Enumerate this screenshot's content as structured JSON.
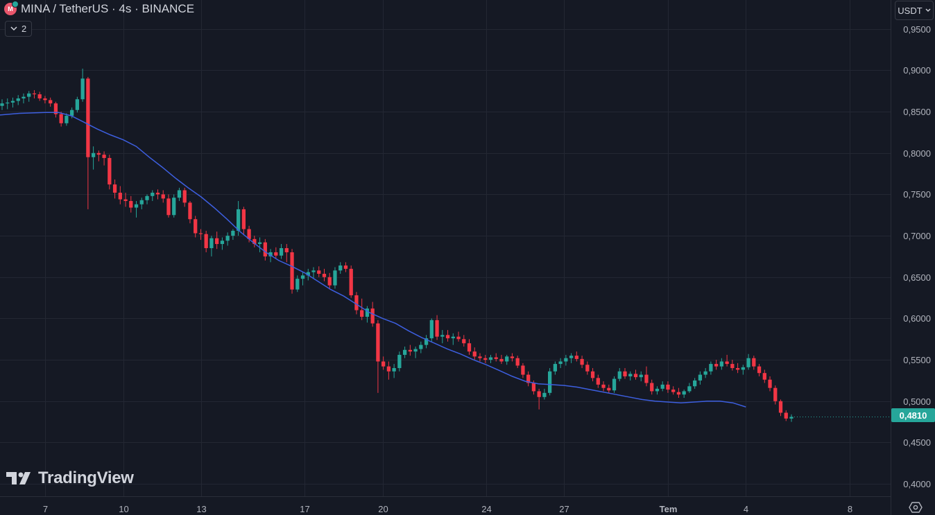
{
  "legend": {
    "symbol_title": "MINA / TetherUS · 4s · BINANCE",
    "coin_icon_letter": "M",
    "indicator_count": "2"
  },
  "currency_button": {
    "label": "USDT"
  },
  "brand": {
    "name": "TradingView"
  },
  "last_price": {
    "label": "0,4810",
    "value": 0.481,
    "color": "#26a69a"
  },
  "colors": {
    "background": "#151924",
    "up": "#26a69a",
    "down": "#f23645",
    "ma": "#3d5fe0",
    "grid": "#232733"
  },
  "chart_data": {
    "type": "candlestick",
    "title": "MINA / TetherUS · 4s · BINANCE",
    "interval": "4s",
    "y_axis": {
      "range": [
        0.385,
        0.985
      ],
      "ticks": [
        0.95,
        0.9,
        0.85,
        0.8,
        0.75,
        0.7,
        0.65,
        0.6,
        0.55,
        0.5,
        0.45,
        0.4
      ],
      "tick_labels": [
        "0,9500",
        "0,9000",
        "0,8500",
        "0,8000",
        "0,7500",
        "0,7000",
        "0,6500",
        "0,6000",
        "0,5500",
        "0,5000",
        "0,4500",
        "0,4000"
      ]
    },
    "x_axis": {
      "start_day": 5.25,
      "end_day": 39.58,
      "ticks": [
        {
          "day": 7,
          "label": "7"
        },
        {
          "day": 10,
          "label": "10"
        },
        {
          "day": 13,
          "label": "13"
        },
        {
          "day": 17,
          "label": "17"
        },
        {
          "day": 20,
          "label": "20"
        },
        {
          "day": 24,
          "label": "24"
        },
        {
          "day": 27,
          "label": "27"
        },
        {
          "day": 31,
          "label": "Tem"
        },
        {
          "day": 34,
          "label": "4"
        },
        {
          "day": 38,
          "label": "8"
        }
      ]
    },
    "grid": true,
    "candles_ohlc": [
      [
        0.857,
        0.865,
        0.852,
        0.86
      ],
      [
        0.86,
        0.866,
        0.853,
        0.861
      ],
      [
        0.861,
        0.867,
        0.855,
        0.863
      ],
      [
        0.863,
        0.87,
        0.858,
        0.866
      ],
      [
        0.866,
        0.872,
        0.86,
        0.868
      ],
      [
        0.868,
        0.875,
        0.862,
        0.872
      ],
      [
        0.872,
        0.876,
        0.866,
        0.871
      ],
      [
        0.871,
        0.874,
        0.863,
        0.866
      ],
      [
        0.866,
        0.869,
        0.86,
        0.864
      ],
      [
        0.864,
        0.867,
        0.856,
        0.86
      ],
      [
        0.86,
        0.862,
        0.843,
        0.847
      ],
      [
        0.847,
        0.85,
        0.832,
        0.836
      ],
      [
        0.836,
        0.848,
        0.833,
        0.845
      ],
      [
        0.845,
        0.855,
        0.842,
        0.852
      ],
      [
        0.852,
        0.868,
        0.849,
        0.865
      ],
      [
        0.865,
        0.902,
        0.862,
        0.89
      ],
      [
        0.89,
        0.892,
        0.732,
        0.795
      ],
      [
        0.795,
        0.808,
        0.78,
        0.8
      ],
      [
        0.8,
        0.803,
        0.79,
        0.798
      ],
      [
        0.798,
        0.802,
        0.785,
        0.794
      ],
      [
        0.794,
        0.798,
        0.756,
        0.762
      ],
      [
        0.762,
        0.768,
        0.745,
        0.752
      ],
      [
        0.752,
        0.76,
        0.738,
        0.744
      ],
      [
        0.744,
        0.752,
        0.735,
        0.742
      ],
      [
        0.742,
        0.748,
        0.728,
        0.734
      ],
      [
        0.734,
        0.742,
        0.722,
        0.738
      ],
      [
        0.738,
        0.746,
        0.732,
        0.743
      ],
      [
        0.743,
        0.75,
        0.738,
        0.748
      ],
      [
        0.748,
        0.755,
        0.742,
        0.752
      ],
      [
        0.752,
        0.756,
        0.744,
        0.75
      ],
      [
        0.75,
        0.755,
        0.74,
        0.745
      ],
      [
        0.745,
        0.75,
        0.722,
        0.725
      ],
      [
        0.725,
        0.75,
        0.722,
        0.746
      ],
      [
        0.746,
        0.758,
        0.742,
        0.755
      ],
      [
        0.755,
        0.758,
        0.735,
        0.74
      ],
      [
        0.74,
        0.742,
        0.715,
        0.72
      ],
      [
        0.72,
        0.724,
        0.698,
        0.703
      ],
      [
        0.703,
        0.708,
        0.695,
        0.702
      ],
      [
        0.702,
        0.706,
        0.68,
        0.685
      ],
      [
        0.685,
        0.7,
        0.675,
        0.697
      ],
      [
        0.697,
        0.705,
        0.684,
        0.69
      ],
      [
        0.69,
        0.698,
        0.683,
        0.694
      ],
      [
        0.694,
        0.704,
        0.688,
        0.7
      ],
      [
        0.7,
        0.708,
        0.695,
        0.706
      ],
      [
        0.706,
        0.742,
        0.7,
        0.732
      ],
      [
        0.732,
        0.735,
        0.702,
        0.708
      ],
      [
        0.708,
        0.712,
        0.692,
        0.696
      ],
      [
        0.696,
        0.7,
        0.686,
        0.69
      ],
      [
        0.69,
        0.698,
        0.68,
        0.692
      ],
      [
        0.692,
        0.696,
        0.67,
        0.675
      ],
      [
        0.675,
        0.684,
        0.668,
        0.68
      ],
      [
        0.68,
        0.686,
        0.672,
        0.676
      ],
      [
        0.676,
        0.69,
        0.672,
        0.685
      ],
      [
        0.685,
        0.69,
        0.668,
        0.68
      ],
      [
        0.68,
        0.684,
        0.63,
        0.635
      ],
      [
        0.635,
        0.652,
        0.632,
        0.648
      ],
      [
        0.648,
        0.656,
        0.64,
        0.652
      ],
      [
        0.652,
        0.66,
        0.646,
        0.656
      ],
      [
        0.656,
        0.662,
        0.648,
        0.658
      ],
      [
        0.658,
        0.663,
        0.65,
        0.654
      ],
      [
        0.654,
        0.66,
        0.645,
        0.65
      ],
      [
        0.65,
        0.655,
        0.635,
        0.64
      ],
      [
        0.64,
        0.662,
        0.636,
        0.658
      ],
      [
        0.658,
        0.668,
        0.654,
        0.664
      ],
      [
        0.664,
        0.668,
        0.656,
        0.66
      ],
      [
        0.66,
        0.664,
        0.625,
        0.628
      ],
      [
        0.628,
        0.632,
        0.605,
        0.61
      ],
      [
        0.61,
        0.624,
        0.598,
        0.602
      ],
      [
        0.602,
        0.615,
        0.595,
        0.612
      ],
      [
        0.612,
        0.62,
        0.59,
        0.594
      ],
      [
        0.594,
        0.598,
        0.51,
        0.548
      ],
      [
        0.548,
        0.554,
        0.538,
        0.542
      ],
      [
        0.542,
        0.548,
        0.526,
        0.536
      ],
      [
        0.536,
        0.545,
        0.528,
        0.54
      ],
      [
        0.54,
        0.56,
        0.536,
        0.556
      ],
      [
        0.556,
        0.566,
        0.552,
        0.562
      ],
      [
        0.562,
        0.568,
        0.555,
        0.56
      ],
      [
        0.56,
        0.566,
        0.552,
        0.563
      ],
      [
        0.563,
        0.572,
        0.558,
        0.568
      ],
      [
        0.568,
        0.58,
        0.564,
        0.576
      ],
      [
        0.576,
        0.6,
        0.572,
        0.598
      ],
      [
        0.598,
        0.604,
        0.574,
        0.578
      ],
      [
        0.578,
        0.586,
        0.57,
        0.58
      ],
      [
        0.58,
        0.586,
        0.572,
        0.576
      ],
      [
        0.576,
        0.582,
        0.568,
        0.578
      ],
      [
        0.578,
        0.584,
        0.572,
        0.575
      ],
      [
        0.575,
        0.58,
        0.566,
        0.57
      ],
      [
        0.57,
        0.575,
        0.556,
        0.56
      ],
      [
        0.56,
        0.565,
        0.55,
        0.554
      ],
      [
        0.554,
        0.558,
        0.548,
        0.552
      ],
      [
        0.552,
        0.556,
        0.546,
        0.55
      ],
      [
        0.55,
        0.556,
        0.546,
        0.553
      ],
      [
        0.553,
        0.558,
        0.548,
        0.551
      ],
      [
        0.551,
        0.556,
        0.545,
        0.548
      ],
      [
        0.548,
        0.556,
        0.544,
        0.554
      ],
      [
        0.554,
        0.558,
        0.548,
        0.552
      ],
      [
        0.552,
        0.555,
        0.54,
        0.543
      ],
      [
        0.543,
        0.546,
        0.528,
        0.532
      ],
      [
        0.532,
        0.536,
        0.518,
        0.522
      ],
      [
        0.522,
        0.525,
        0.508,
        0.512
      ],
      [
        0.512,
        0.515,
        0.49,
        0.505
      ],
      [
        0.505,
        0.515,
        0.502,
        0.51
      ],
      [
        0.51,
        0.54,
        0.507,
        0.536
      ],
      [
        0.536,
        0.548,
        0.532,
        0.545
      ],
      [
        0.545,
        0.552,
        0.54,
        0.548
      ],
      [
        0.548,
        0.556,
        0.543,
        0.552
      ],
      [
        0.552,
        0.558,
        0.546,
        0.555
      ],
      [
        0.555,
        0.56,
        0.548,
        0.551
      ],
      [
        0.551,
        0.555,
        0.54,
        0.544
      ],
      [
        0.544,
        0.548,
        0.532,
        0.536
      ],
      [
        0.536,
        0.54,
        0.524,
        0.528
      ],
      [
        0.528,
        0.532,
        0.516,
        0.52
      ],
      [
        0.52,
        0.524,
        0.512,
        0.516
      ],
      [
        0.516,
        0.52,
        0.51,
        0.513
      ],
      [
        0.513,
        0.53,
        0.51,
        0.527
      ],
      [
        0.527,
        0.54,
        0.524,
        0.536
      ],
      [
        0.536,
        0.54,
        0.527,
        0.53
      ],
      [
        0.53,
        0.536,
        0.525,
        0.533
      ],
      [
        0.533,
        0.538,
        0.526,
        0.529
      ],
      [
        0.529,
        0.536,
        0.524,
        0.532
      ],
      [
        0.532,
        0.542,
        0.518,
        0.522
      ],
      [
        0.522,
        0.526,
        0.508,
        0.512
      ],
      [
        0.512,
        0.518,
        0.508,
        0.515
      ],
      [
        0.515,
        0.524,
        0.512,
        0.52
      ],
      [
        0.52,
        0.524,
        0.51,
        0.514
      ],
      [
        0.514,
        0.518,
        0.508,
        0.511
      ],
      [
        0.511,
        0.516,
        0.504,
        0.508
      ],
      [
        0.508,
        0.514,
        0.504,
        0.512
      ],
      [
        0.512,
        0.522,
        0.51,
        0.518
      ],
      [
        0.518,
        0.528,
        0.515,
        0.525
      ],
      [
        0.525,
        0.536,
        0.52,
        0.532
      ],
      [
        0.532,
        0.54,
        0.528,
        0.536
      ],
      [
        0.536,
        0.548,
        0.532,
        0.545
      ],
      [
        0.545,
        0.55,
        0.538,
        0.542
      ],
      [
        0.542,
        0.552,
        0.538,
        0.548
      ],
      [
        0.548,
        0.556,
        0.542,
        0.545
      ],
      [
        0.545,
        0.55,
        0.537,
        0.54
      ],
      [
        0.54,
        0.546,
        0.534,
        0.538
      ],
      [
        0.538,
        0.544,
        0.532,
        0.541
      ],
      [
        0.541,
        0.557,
        0.538,
        0.552
      ],
      [
        0.552,
        0.555,
        0.538,
        0.542
      ],
      [
        0.542,
        0.545,
        0.53,
        0.534
      ],
      [
        0.534,
        0.538,
        0.522,
        0.526
      ],
      [
        0.526,
        0.53,
        0.512,
        0.516
      ],
      [
        0.516,
        0.519,
        0.496,
        0.5
      ],
      [
        0.5,
        0.502,
        0.482,
        0.486
      ],
      [
        0.486,
        0.489,
        0.476,
        0.479
      ],
      [
        0.479,
        0.484,
        0.475,
        0.481
      ]
    ],
    "series": [
      {
        "name": "MINA / TetherUS",
        "type": "candlestick"
      },
      {
        "type": "line",
        "color": "#3d5fe0",
        "points": [
          [
            5.25,
            0.846
          ],
          [
            6.0,
            0.848
          ],
          [
            7.0,
            0.849
          ],
          [
            7.5,
            0.849
          ],
          [
            8.0,
            0.845
          ],
          [
            8.5,
            0.837
          ],
          [
            9.0,
            0.829
          ],
          [
            9.5,
            0.822
          ],
          [
            10.0,
            0.816
          ],
          [
            10.5,
            0.808
          ],
          [
            11.0,
            0.795
          ],
          [
            11.5,
            0.783
          ],
          [
            12.0,
            0.77
          ],
          [
            12.5,
            0.758
          ],
          [
            13.0,
            0.747
          ],
          [
            13.5,
            0.734
          ],
          [
            14.0,
            0.72
          ],
          [
            14.5,
            0.705
          ],
          [
            15.0,
            0.692
          ],
          [
            15.5,
            0.68
          ],
          [
            16.0,
            0.67
          ],
          [
            16.5,
            0.663
          ],
          [
            17.0,
            0.655
          ],
          [
            17.5,
            0.645
          ],
          [
            18.0,
            0.635
          ],
          [
            18.5,
            0.627
          ],
          [
            19.0,
            0.617
          ],
          [
            19.5,
            0.607
          ],
          [
            20.0,
            0.6
          ],
          [
            20.5,
            0.594
          ],
          [
            21.0,
            0.585
          ],
          [
            21.5,
            0.577
          ],
          [
            22.0,
            0.57
          ],
          [
            22.5,
            0.563
          ],
          [
            23.0,
            0.557
          ],
          [
            23.5,
            0.55
          ],
          [
            24.0,
            0.544
          ],
          [
            24.5,
            0.537
          ],
          [
            25.0,
            0.53
          ],
          [
            25.5,
            0.524
          ],
          [
            26.0,
            0.521
          ],
          [
            26.5,
            0.52
          ],
          [
            27.0,
            0.519
          ],
          [
            27.5,
            0.517
          ],
          [
            28.0,
            0.514
          ],
          [
            28.5,
            0.511
          ],
          [
            29.0,
            0.508
          ],
          [
            29.5,
            0.505
          ],
          [
            30.0,
            0.502
          ],
          [
            30.5,
            0.5
          ],
          [
            31.0,
            0.499
          ],
          [
            31.5,
            0.498
          ],
          [
            32.0,
            0.499
          ],
          [
            32.5,
            0.5
          ],
          [
            33.0,
            0.5
          ],
          [
            33.5,
            0.498
          ],
          [
            34.0,
            0.493
          ]
        ]
      }
    ]
  }
}
